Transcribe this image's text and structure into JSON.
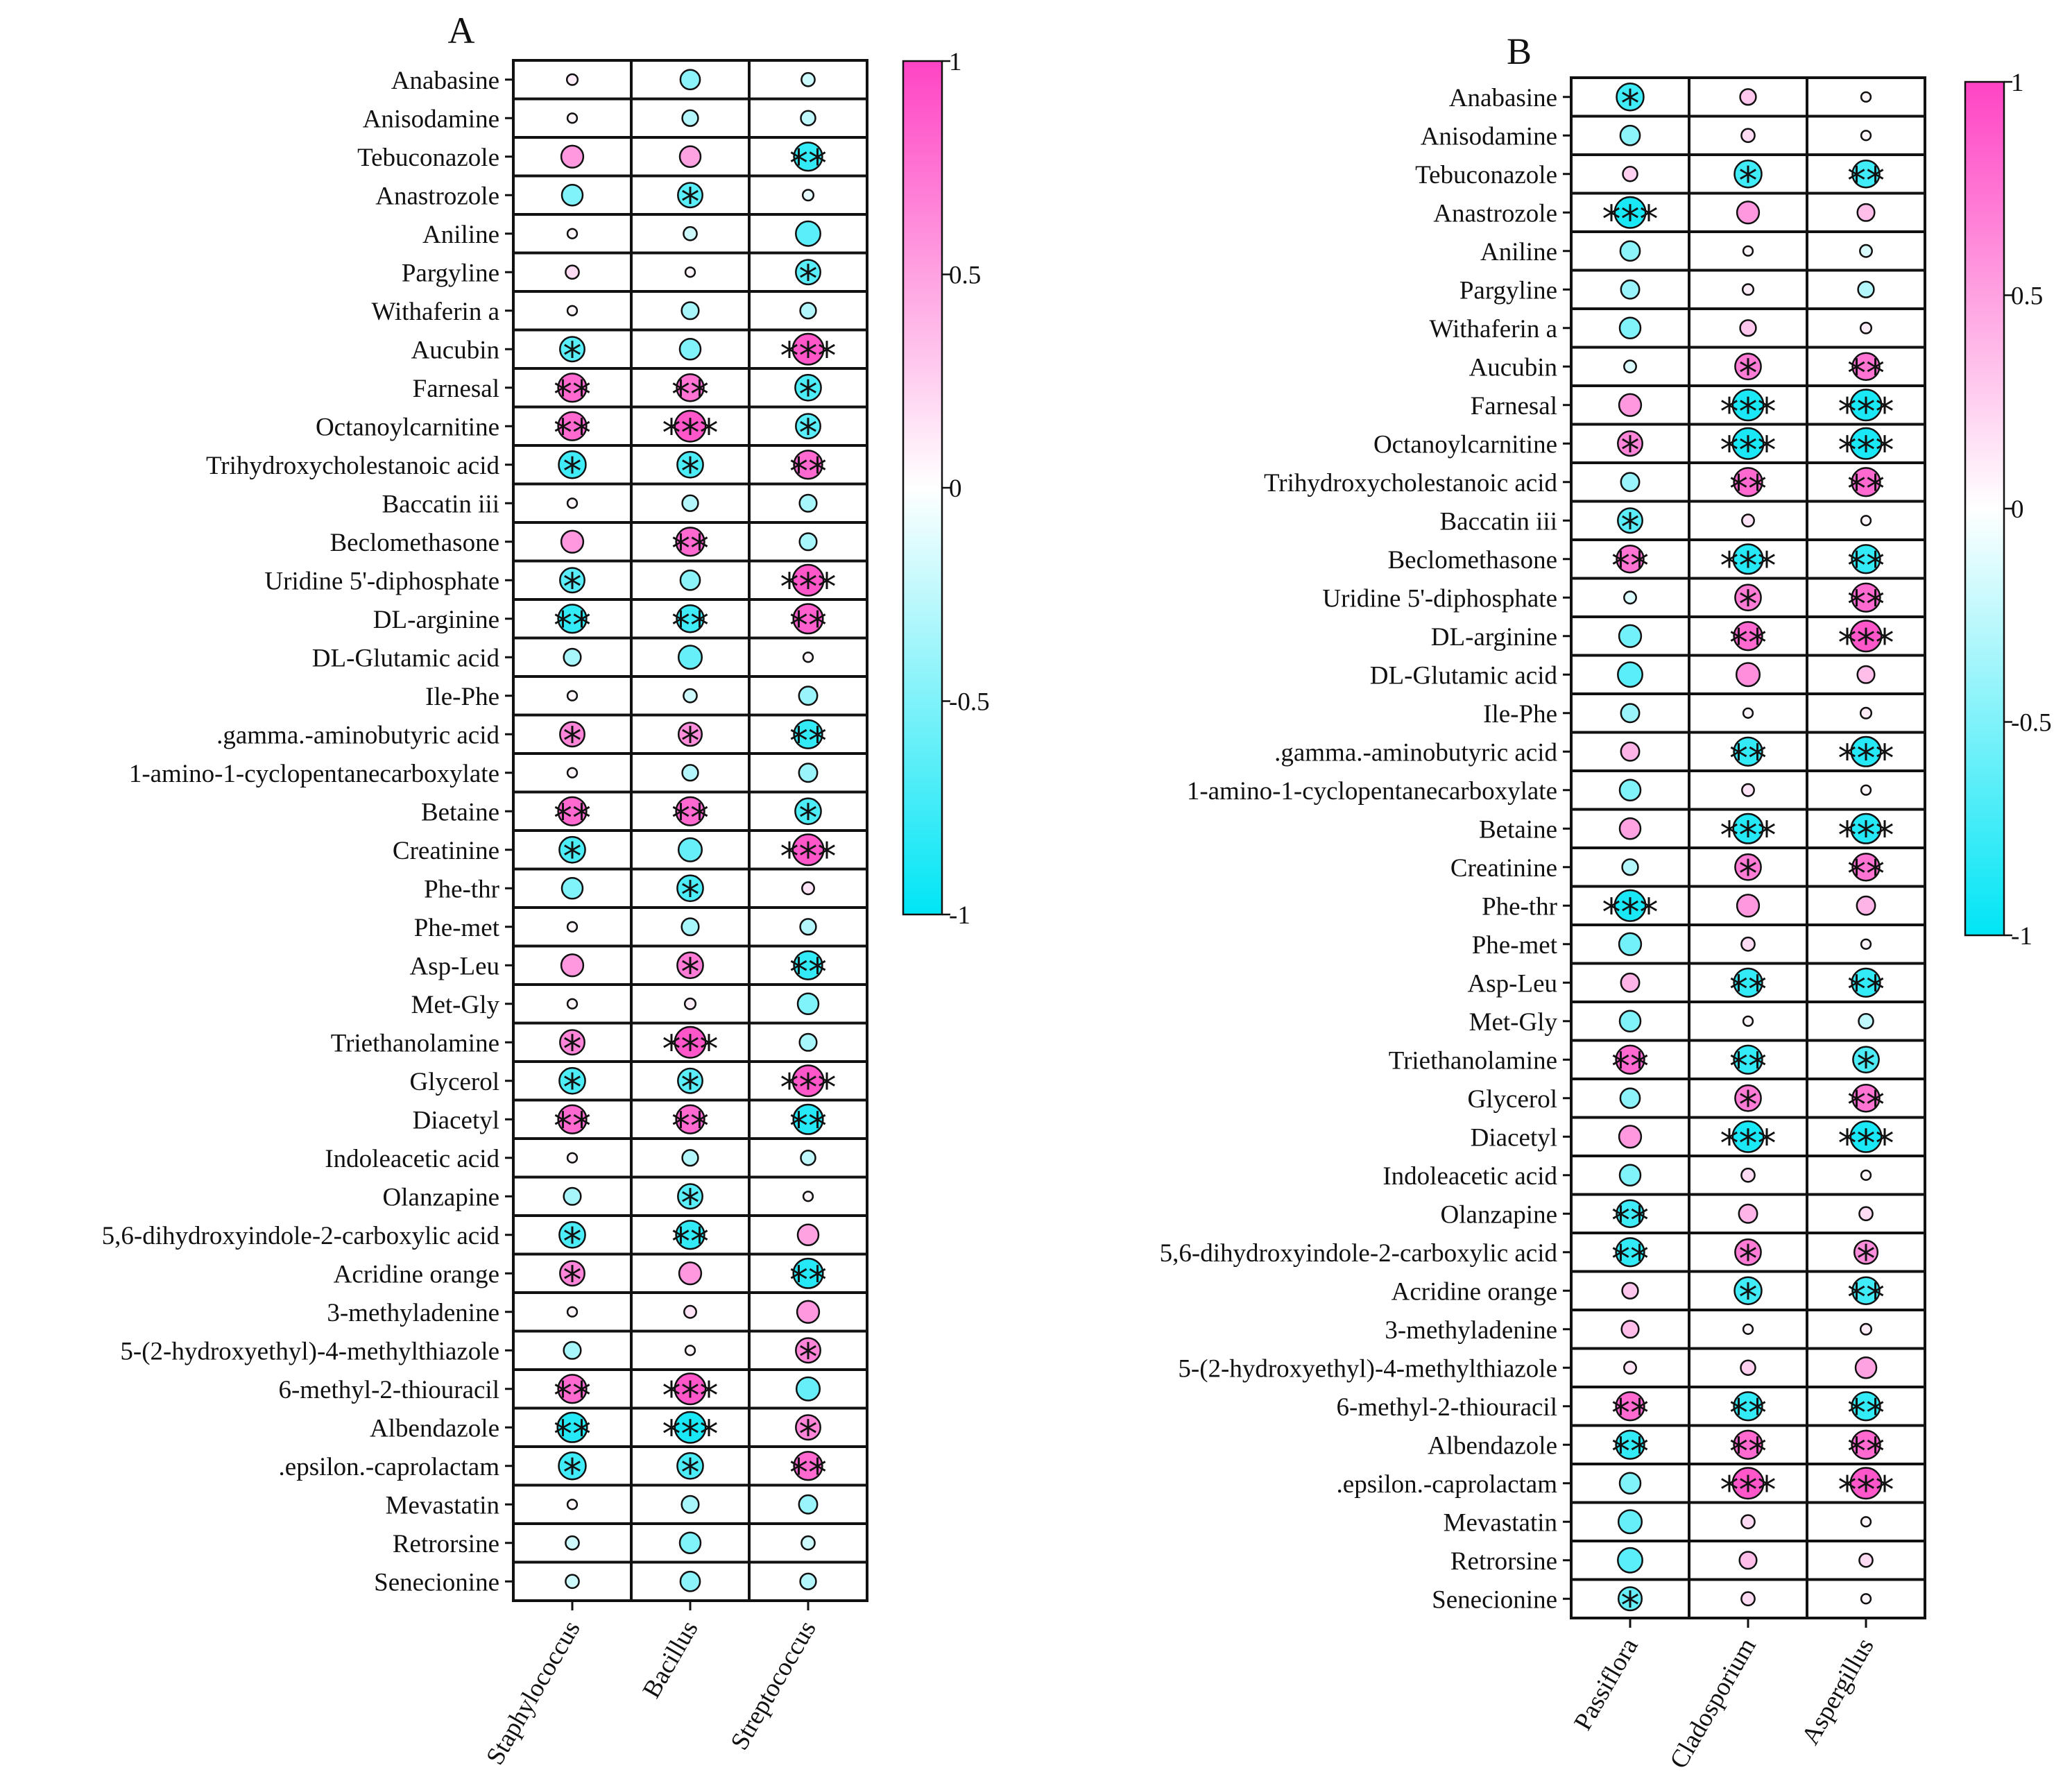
{
  "chart_data": [
    {
      "type": "heatmap",
      "panel": "A",
      "title": "A",
      "columns": [
        "Staphylococcus",
        "Bacillus",
        "Streptococcus"
      ],
      "colorbar": {
        "min": -1,
        "max": 1,
        "ticks": [
          "1",
          "0.5",
          "0",
          "-0.5",
          "-1"
        ],
        "low_color": "#00e5f5",
        "mid_color": "#ffffff",
        "high_color": "#ff44c4"
      },
      "rows": [
        {
          "name": "Anabasine",
          "values": [
            0.1,
            -0.45,
            -0.2
          ],
          "stars": [
            "",
            "",
            ""
          ]
        },
        {
          "name": "Anisodamine",
          "values": [
            0.05,
            -0.3,
            -0.25
          ],
          "stars": [
            "",
            "",
            ""
          ]
        },
        {
          "name": "Tebuconazole",
          "values": [
            0.55,
            0.5,
            -0.8
          ],
          "stars": [
            "",
            "",
            "**"
          ]
        },
        {
          "name": "Anastrozole",
          "values": [
            -0.5,
            -0.65,
            -0.1
          ],
          "stars": [
            "",
            "*",
            ""
          ]
        },
        {
          "name": "Aniline",
          "values": [
            0.05,
            -0.2,
            -0.65
          ],
          "stars": [
            "",
            "",
            ""
          ]
        },
        {
          "name": "Pargyline",
          "values": [
            0.2,
            0.05,
            -0.65
          ],
          "stars": [
            "",
            "",
            "*"
          ]
        },
        {
          "name": "Withaferin a",
          "values": [
            0.05,
            -0.35,
            -0.3
          ],
          "stars": [
            "",
            "",
            ""
          ]
        },
        {
          "name": "Aucubin",
          "values": [
            -0.65,
            -0.5,
            0.9
          ],
          "stars": [
            "*",
            "",
            "***"
          ]
        },
        {
          "name": "Farnesal",
          "values": [
            0.8,
            0.75,
            -0.7
          ],
          "stars": [
            "**",
            "**",
            "*"
          ]
        },
        {
          "name": "Octanoylcarnitine",
          "values": [
            0.8,
            0.9,
            -0.65
          ],
          "stars": [
            "**",
            "***",
            "*"
          ]
        },
        {
          "name": "Trihydroxycholestanoic acid",
          "values": [
            -0.75,
            -0.7,
            0.8
          ],
          "stars": [
            "*",
            "*",
            "**"
          ]
        },
        {
          "name": "Baccatin iii",
          "values": [
            0.05,
            -0.3,
            -0.35
          ],
          "stars": [
            "",
            "",
            ""
          ]
        },
        {
          "name": "Beclomethasone",
          "values": [
            0.55,
            0.8,
            -0.35
          ],
          "stars": [
            "",
            "**",
            ""
          ]
        },
        {
          "name": "Uridine 5'-diphosphate",
          "values": [
            -0.65,
            -0.45,
            0.9
          ],
          "stars": [
            "*",
            "",
            "***"
          ]
        },
        {
          "name": "DL-arginine",
          "values": [
            -0.8,
            -0.75,
            0.85
          ],
          "stars": [
            "**",
            "**",
            "**"
          ]
        },
        {
          "name": "DL-Glutamic acid",
          "values": [
            -0.35,
            -0.6,
            0.05
          ],
          "stars": [
            "",
            "",
            ""
          ]
        },
        {
          "name": "Ile-Phe",
          "values": [
            0.05,
            -0.2,
            -0.4
          ],
          "stars": [
            "",
            "",
            ""
          ]
        },
        {
          "name": ".gamma.-aminobutyric acid",
          "values": [
            0.65,
            0.6,
            -0.8
          ],
          "stars": [
            "*",
            "*",
            "**"
          ]
        },
        {
          "name": "1-amino-1-cyclopentanecarboxylate",
          "values": [
            0.05,
            -0.3,
            -0.4
          ],
          "stars": [
            "",
            "",
            ""
          ]
        },
        {
          "name": "Betaine",
          "values": [
            0.8,
            0.8,
            -0.7
          ],
          "stars": [
            "**",
            "**",
            "*"
          ]
        },
        {
          "name": "Creatinine",
          "values": [
            -0.7,
            -0.6,
            0.9
          ],
          "stars": [
            "*",
            "",
            "***"
          ]
        },
        {
          "name": "Phe-thr",
          "values": [
            -0.5,
            -0.7,
            0.15
          ],
          "stars": [
            "",
            "*",
            ""
          ]
        },
        {
          "name": "Phe-met",
          "values": [
            0.05,
            -0.35,
            -0.3
          ],
          "stars": [
            "",
            "",
            ""
          ]
        },
        {
          "name": "Asp-Leu",
          "values": [
            0.55,
            0.7,
            -0.8
          ],
          "stars": [
            "",
            "*",
            "**"
          ]
        },
        {
          "name": "Met-Gly",
          "values": [
            0.05,
            0.1,
            -0.5
          ],
          "stars": [
            "",
            "",
            ""
          ]
        },
        {
          "name": "Triethanolamine",
          "values": [
            0.65,
            0.9,
            -0.35
          ],
          "stars": [
            "*",
            "***",
            ""
          ]
        },
        {
          "name": "Glycerol",
          "values": [
            -0.7,
            -0.65,
            0.9
          ],
          "stars": [
            "*",
            "*",
            "***"
          ]
        },
        {
          "name": "Diacetyl",
          "values": [
            0.8,
            0.8,
            -0.85
          ],
          "stars": [
            "**",
            "**",
            "**"
          ]
        },
        {
          "name": "Indoleacetic acid",
          "values": [
            0.05,
            -0.3,
            -0.25
          ],
          "stars": [
            "",
            "",
            ""
          ]
        },
        {
          "name": "Olanzapine",
          "values": [
            -0.35,
            -0.65,
            0.05
          ],
          "stars": [
            "",
            "*",
            ""
          ]
        },
        {
          "name": "5,6-dihydroxyindole-2-carboxylic acid",
          "values": [
            -0.7,
            -0.8,
            0.5
          ],
          "stars": [
            "*",
            "**",
            ""
          ]
        },
        {
          "name": "Acridine orange",
          "values": [
            0.65,
            0.55,
            -0.85
          ],
          "stars": [
            "*",
            "",
            "**"
          ]
        },
        {
          "name": "3-methyladenine",
          "values": [
            0.05,
            0.15,
            0.55
          ],
          "stars": [
            "",
            "",
            ""
          ]
        },
        {
          "name": "5-(2-hydroxyethyl)-4-methylthiazole",
          "values": [
            -0.35,
            0.05,
            0.65
          ],
          "stars": [
            "",
            "",
            "*"
          ]
        },
        {
          "name": "6-methyl-2-thiouracil",
          "values": [
            0.8,
            0.9,
            -0.6
          ],
          "stars": [
            "**",
            "***",
            ""
          ]
        },
        {
          "name": "Albendazole",
          "values": [
            -0.85,
            -0.9,
            0.65
          ],
          "stars": [
            "**",
            "***",
            "*"
          ]
        },
        {
          "name": ".epsilon.-caprolactam",
          "values": [
            -0.75,
            -0.7,
            0.8
          ],
          "stars": [
            "*",
            "*",
            "**"
          ]
        },
        {
          "name": "Mevastatin",
          "values": [
            0.05,
            -0.35,
            -0.4
          ],
          "stars": [
            "",
            "",
            ""
          ]
        },
        {
          "name": "Retrorsine",
          "values": [
            -0.2,
            -0.5,
            -0.2
          ],
          "stars": [
            "",
            "",
            ""
          ]
        },
        {
          "name": "Senecionine",
          "values": [
            -0.2,
            -0.45,
            -0.3
          ],
          "stars": [
            "",
            "",
            ""
          ]
        }
      ]
    },
    {
      "type": "heatmap",
      "panel": "B",
      "title": "B",
      "columns": [
        "Passiflora",
        "Cladosporium",
        "Aspergillus"
      ],
      "colorbar": {
        "min": -1,
        "max": 1,
        "ticks": [
          "1",
          "0.5",
          "0",
          "-0.5",
          "-1"
        ],
        "low_color": "#00e5f5",
        "mid_color": "#ffffff",
        "high_color": "#ff44c4"
      },
      "rows": [
        {
          "name": "Anabasine",
          "values": [
            -0.75,
            0.3,
            0.05
          ],
          "stars": [
            "*",
            "",
            ""
          ]
        },
        {
          "name": "Anisodamine",
          "values": [
            -0.45,
            0.2,
            0.05
          ],
          "stars": [
            "",
            "",
            ""
          ]
        },
        {
          "name": "Tebuconazole",
          "values": [
            0.25,
            -0.75,
            -0.75
          ],
          "stars": [
            "",
            "*",
            "**"
          ]
        },
        {
          "name": "Anastrozole",
          "values": [
            -0.9,
            0.55,
            0.35
          ],
          "stars": [
            "***",
            "",
            ""
          ]
        },
        {
          "name": "Aniline",
          "values": [
            -0.45,
            0.05,
            -0.15
          ],
          "stars": [
            "",
            "",
            ""
          ]
        },
        {
          "name": "Pargyline",
          "values": [
            -0.4,
            0.1,
            -0.3
          ],
          "stars": [
            "",
            "",
            ""
          ]
        },
        {
          "name": "Withaferin a",
          "values": [
            -0.5,
            0.3,
            0.1
          ],
          "stars": [
            "",
            "",
            ""
          ]
        },
        {
          "name": "Aucubin",
          "values": [
            -0.15,
            0.7,
            0.75
          ],
          "stars": [
            "",
            "*",
            "**"
          ]
        },
        {
          "name": "Farnesal",
          "values": [
            0.55,
            -0.9,
            -0.9
          ],
          "stars": [
            "",
            "***",
            "***"
          ]
        },
        {
          "name": "Octanoylcarnitine",
          "values": [
            0.65,
            -0.9,
            -0.9
          ],
          "stars": [
            "*",
            "***",
            "***"
          ]
        },
        {
          "name": "Trihydroxycholestanoic acid",
          "values": [
            -0.4,
            0.8,
            0.8
          ],
          "stars": [
            "",
            "**",
            "**"
          ]
        },
        {
          "name": "Baccatin iii",
          "values": [
            -0.65,
            0.15,
            0.05
          ],
          "stars": [
            "*",
            "",
            ""
          ]
        },
        {
          "name": "Beclomethasone",
          "values": [
            0.75,
            -0.85,
            -0.8
          ],
          "stars": [
            "**",
            "***",
            "**"
          ]
        },
        {
          "name": "Uridine 5'-diphosphate",
          "values": [
            -0.15,
            0.7,
            0.8
          ],
          "stars": [
            "",
            "*",
            "**"
          ]
        },
        {
          "name": "DL-arginine",
          "values": [
            -0.55,
            0.8,
            0.9
          ],
          "stars": [
            "",
            "**",
            "***"
          ]
        },
        {
          "name": "DL-Glutamic acid",
          "values": [
            -0.65,
            0.6,
            0.35
          ],
          "stars": [
            "",
            "",
            ""
          ]
        },
        {
          "name": "Ile-Phe",
          "values": [
            -0.4,
            0.05,
            0.1
          ],
          "stars": [
            "",
            "",
            ""
          ]
        },
        {
          "name": ".gamma.-aminobutyric acid",
          "values": [
            0.4,
            -0.8,
            -0.85
          ],
          "stars": [
            "",
            "**",
            "***"
          ]
        },
        {
          "name": "1-amino-1-cyclopentanecarboxylate",
          "values": [
            -0.5,
            0.15,
            0.05
          ],
          "stars": [
            "",
            "",
            ""
          ]
        },
        {
          "name": "Betaine",
          "values": [
            0.5,
            -0.85,
            -0.85
          ],
          "stars": [
            "",
            "***",
            "***"
          ]
        },
        {
          "name": "Creatinine",
          "values": [
            -0.3,
            0.7,
            0.75
          ],
          "stars": [
            "",
            "*",
            "**"
          ]
        },
        {
          "name": "Phe-thr",
          "values": [
            -0.9,
            0.55,
            0.4
          ],
          "stars": [
            "***",
            "",
            ""
          ]
        },
        {
          "name": "Phe-met",
          "values": [
            -0.55,
            0.2,
            0.05
          ],
          "stars": [
            "",
            "",
            ""
          ]
        },
        {
          "name": "Asp-Leu",
          "values": [
            0.4,
            -0.8,
            -0.8
          ],
          "stars": [
            "",
            "**",
            "**"
          ]
        },
        {
          "name": "Met-Gly",
          "values": [
            -0.5,
            0.05,
            -0.25
          ],
          "stars": [
            "",
            "",
            ""
          ]
        },
        {
          "name": "Triethanolamine",
          "values": [
            0.8,
            -0.8,
            -0.7
          ],
          "stars": [
            "**",
            "**",
            "*"
          ]
        },
        {
          "name": "Glycerol",
          "values": [
            -0.45,
            0.7,
            0.75
          ],
          "stars": [
            "",
            "*",
            "**"
          ]
        },
        {
          "name": "Diacetyl",
          "values": [
            0.55,
            -0.9,
            -0.9
          ],
          "stars": [
            "",
            "***",
            "***"
          ]
        },
        {
          "name": "Indoleacetic acid",
          "values": [
            -0.5,
            0.2,
            0.05
          ],
          "stars": [
            "",
            "",
            ""
          ]
        },
        {
          "name": "Olanzapine",
          "values": [
            -0.75,
            0.4,
            0.2
          ],
          "stars": [
            "**",
            "",
            ""
          ]
        },
        {
          "name": "5,6-dihydroxyindole-2-carboxylic acid",
          "values": [
            -0.8,
            0.7,
            0.6
          ],
          "stars": [
            "**",
            "*",
            "*"
          ]
        },
        {
          "name": "Acridine orange",
          "values": [
            0.3,
            -0.75,
            -0.75
          ],
          "stars": [
            "",
            "*",
            "**"
          ]
        },
        {
          "name": "3-methyladenine",
          "values": [
            0.35,
            0.05,
            0.1
          ],
          "stars": [
            "",
            "",
            ""
          ]
        },
        {
          "name": "5-(2-hydroxyethyl)-4-methylthiazole",
          "values": [
            0.15,
            0.25,
            0.5
          ],
          "stars": [
            "",
            "",
            ""
          ]
        },
        {
          "name": "6-methyl-2-thiouracil",
          "values": [
            0.8,
            -0.8,
            -0.8
          ],
          "stars": [
            "**",
            "**",
            "**"
          ]
        },
        {
          "name": "Albendazole",
          "values": [
            -0.8,
            0.8,
            0.8
          ],
          "stars": [
            "**",
            "**",
            "**"
          ]
        },
        {
          "name": ".epsilon.-caprolactam",
          "values": [
            -0.5,
            0.9,
            0.9
          ],
          "stars": [
            "",
            "***",
            "***"
          ]
        },
        {
          "name": "Mevastatin",
          "values": [
            -0.6,
            0.2,
            0.05
          ],
          "stars": [
            "",
            "",
            ""
          ]
        },
        {
          "name": "Retrorsine",
          "values": [
            -0.65,
            0.35,
            0.2
          ],
          "stars": [
            "",
            "",
            ""
          ]
        },
        {
          "name": "Senecionine",
          "values": [
            -0.6,
            0.2,
            0.05
          ],
          "stars": [
            "*",
            "",
            ""
          ]
        }
      ]
    }
  ]
}
